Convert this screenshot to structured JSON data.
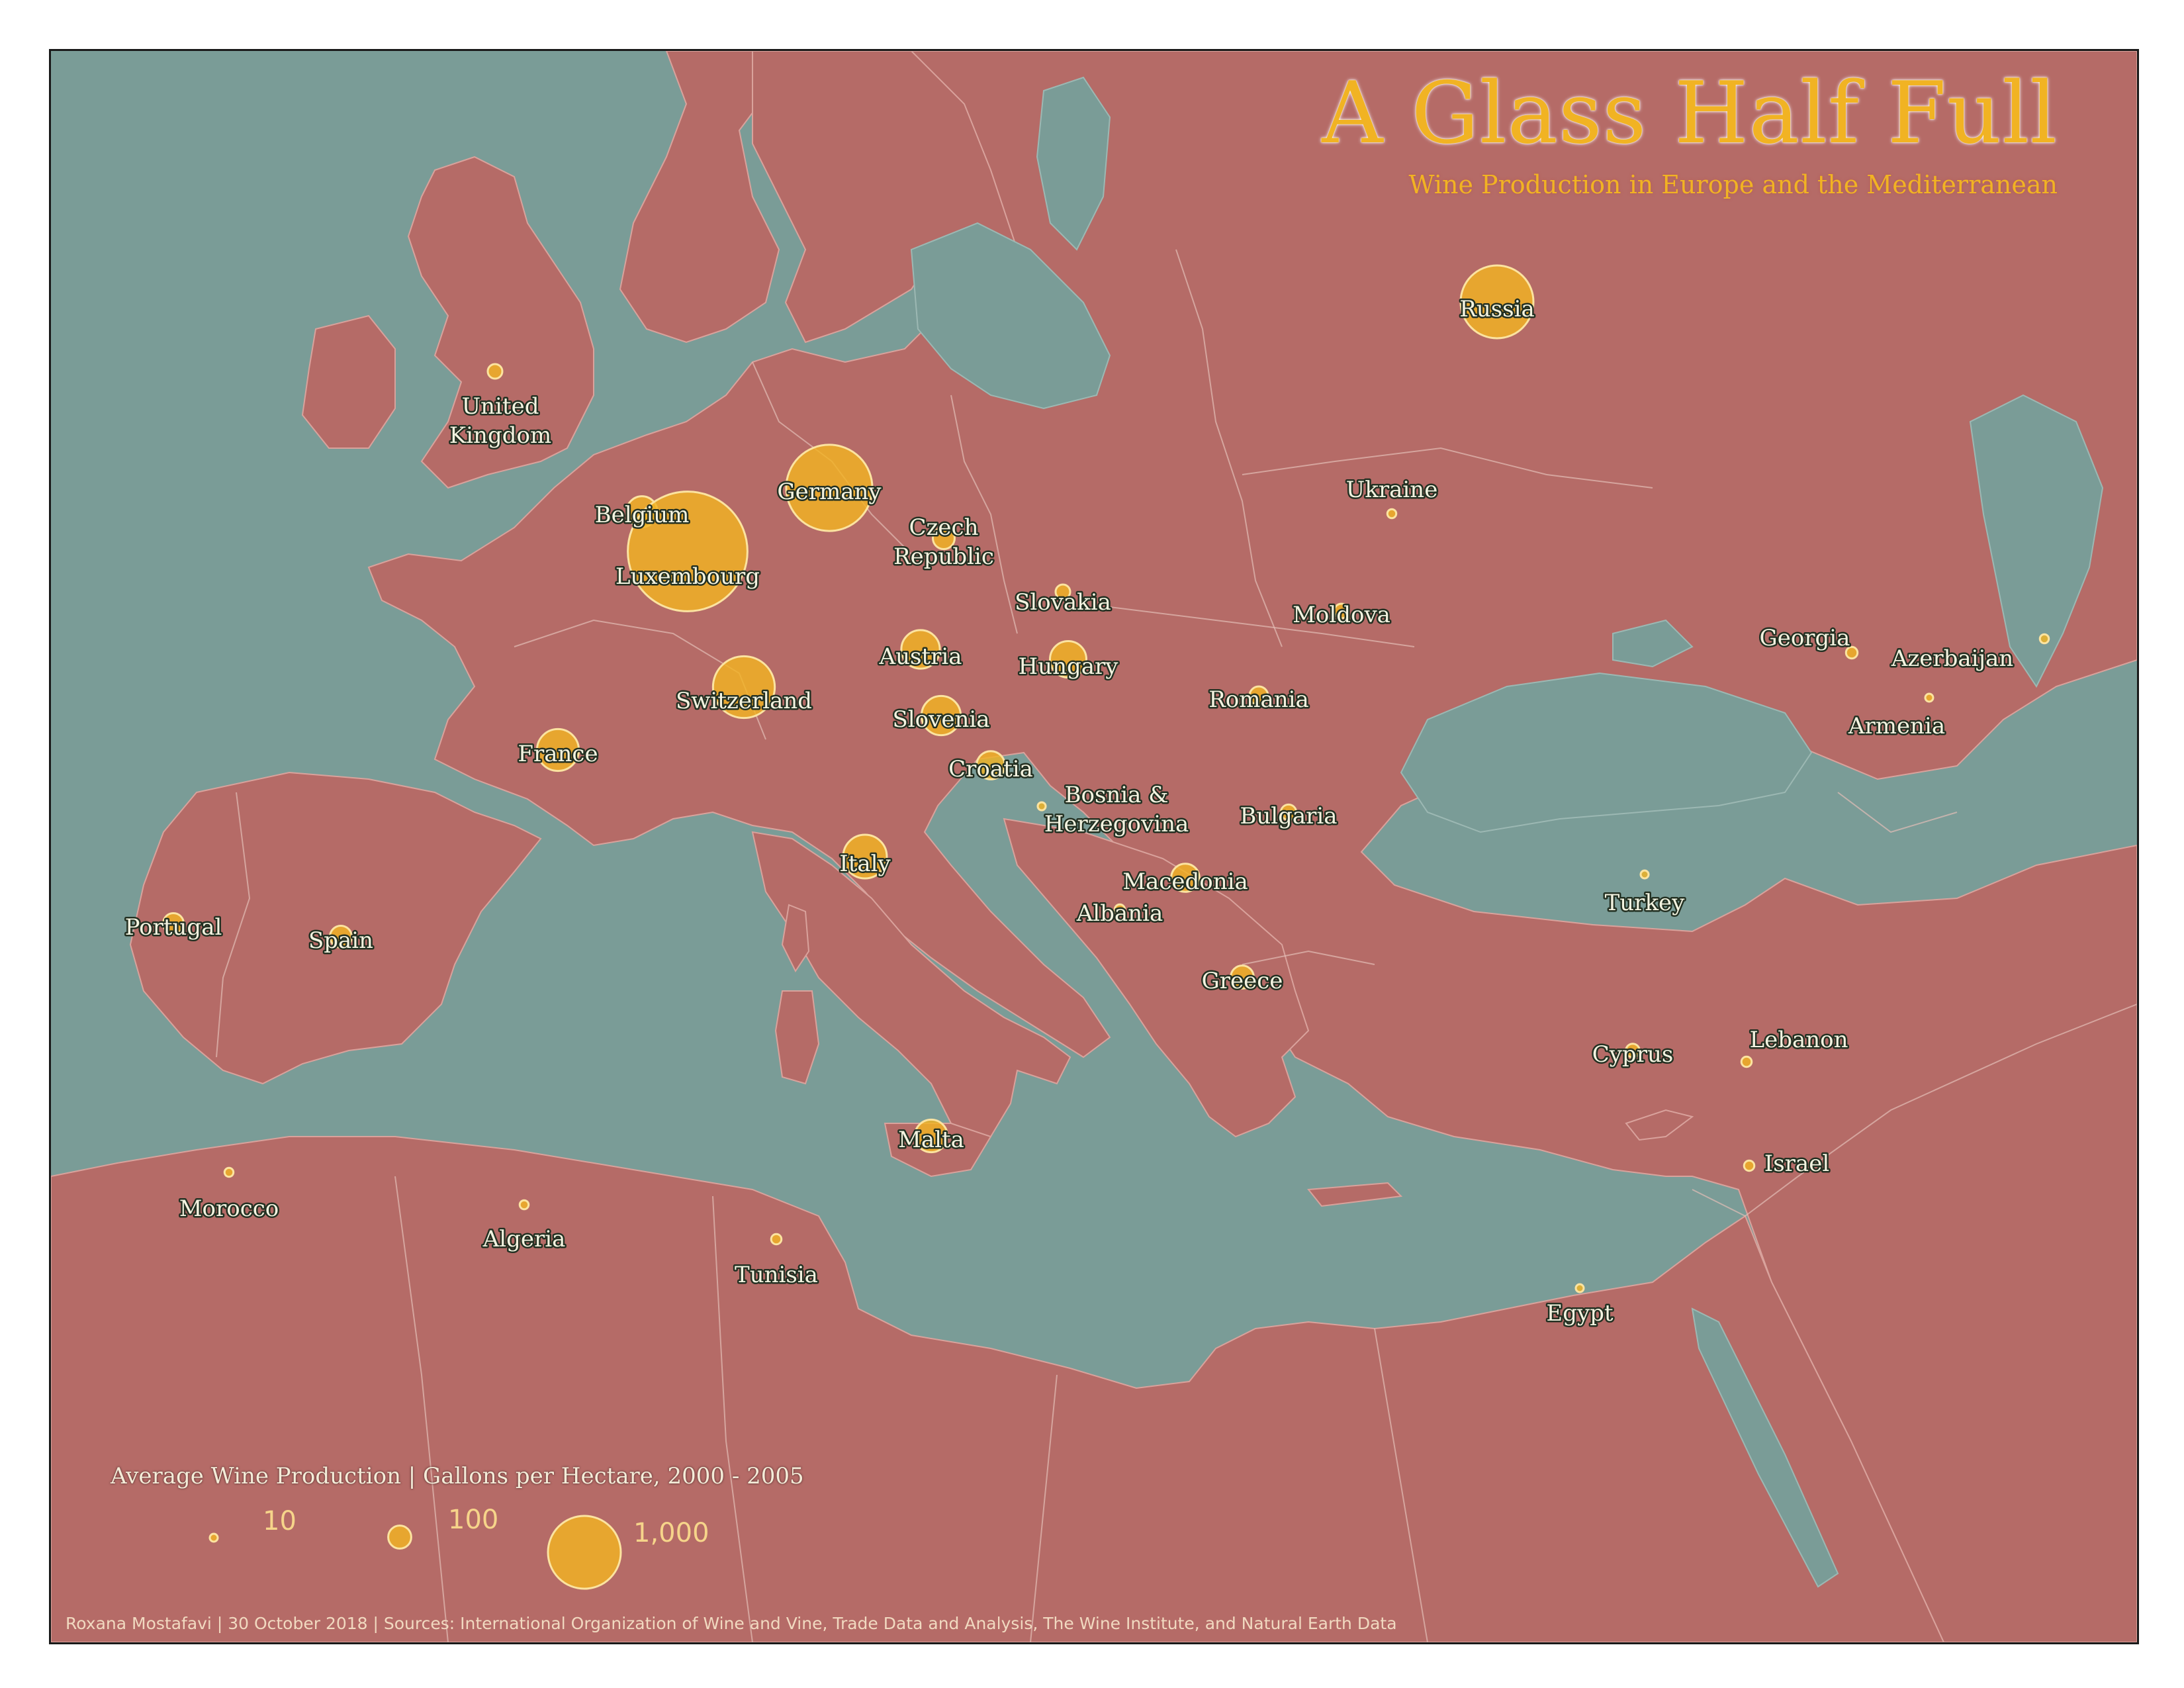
{
  "title": "A Glass Half Full",
  "subtitle": "Wine Production in Europe and the Mediterranean",
  "legend": {
    "title": "Average Wine Production | Gallons per Hectare, 2000 - 2005",
    "entries": [
      {
        "label": "10",
        "value": 10
      },
      {
        "label": "100",
        "value": 100
      },
      {
        "label": "1,000",
        "value": 1000
      }
    ]
  },
  "credits": "Roxana Mostafavi | 30 October 2018 | Sources: International Organization of Wine and Vine, Trade Data and Analysis, The Wine Institute, and Natural Earth Data",
  "colors": {
    "water": "#7a9c97",
    "land": "#b56b67",
    "bubble": "#f1b323",
    "title": "#f1b323"
  },
  "countries": [
    {
      "name": "Russia",
      "label_lines": [
        "Russia"
      ],
      "value": 1000
    },
    {
      "name": "United Kingdom",
      "label_lines": [
        "United",
        "Kingdom"
      ],
      "value": 40
    },
    {
      "name": "Ukraine",
      "label_lines": [
        "Ukraine"
      ],
      "value": 15
    },
    {
      "name": "Germany",
      "label_lines": [
        "Germany"
      ],
      "value": 1400
    },
    {
      "name": "Belgium",
      "label_lines": [
        "Belgium"
      ],
      "value": 180
    },
    {
      "name": "Luxembourg",
      "label_lines": [
        "Luxembourg"
      ],
      "value": 2700
    },
    {
      "name": "Czech Republic",
      "label_lines": [
        "Czech",
        "Republic"
      ],
      "value": 90
    },
    {
      "name": "Slovakia",
      "label_lines": [
        "Slovakia"
      ],
      "value": 40
    },
    {
      "name": "Moldova",
      "label_lines": [
        "Moldova"
      ],
      "value": 40
    },
    {
      "name": "Austria",
      "label_lines": [
        "Austria"
      ],
      "value": 280
    },
    {
      "name": "Hungary",
      "label_lines": [
        "Hungary"
      ],
      "value": 250
    },
    {
      "name": "Switzerland",
      "label_lines": [
        "Switzerland"
      ],
      "value": 720
    },
    {
      "name": "Slovenia",
      "label_lines": [
        "Slovenia"
      ],
      "value": 290
    },
    {
      "name": "Romania",
      "label_lines": [
        "Romania"
      ],
      "value": 65
    },
    {
      "name": "Georgia",
      "label_lines": [
        "Georgia"
      ],
      "value": 25
    },
    {
      "name": "Azerbaijan",
      "label_lines": [
        "Azerbaijan"
      ],
      "value": 15
    },
    {
      "name": "Armenia",
      "label_lines": [
        "Armenia"
      ],
      "value": 7
    },
    {
      "name": "France",
      "label_lines": [
        "France"
      ],
      "value": 330
    },
    {
      "name": "Croatia",
      "label_lines": [
        "Croatia"
      ],
      "value": 150
    },
    {
      "name": "Bosnia & Herzegovina",
      "label_lines": [
        "Bosnia &",
        "Herzegovina"
      ],
      "value": 12
    },
    {
      "name": "Bulgaria",
      "label_lines": [
        "Bulgaria"
      ],
      "value": 45
    },
    {
      "name": "Italy",
      "label_lines": [
        "Italy"
      ],
      "value": 360
    },
    {
      "name": "Macedonia",
      "label_lines": [
        "Macedonia"
      ],
      "value": 150
    },
    {
      "name": "Albania",
      "label_lines": [
        "Albania"
      ],
      "value": 20
    },
    {
      "name": "Turkey",
      "label_lines": [
        "Turkey"
      ],
      "value": 3
    },
    {
      "name": "Portugal",
      "label_lines": [
        "Portugal"
      ],
      "value": 80
    },
    {
      "name": "Spain",
      "label_lines": [
        "Spain"
      ],
      "value": 90
    },
    {
      "name": "Greece",
      "label_lines": [
        "Greece"
      ],
      "value": 100
    },
    {
      "name": "Cyprus",
      "label_lines": [
        "Cyprus"
      ],
      "value": 35
    },
    {
      "name": "Lebanon",
      "label_lines": [
        "Lebanon"
      ],
      "value": 20
    },
    {
      "name": "Israel",
      "label_lines": [
        "Israel"
      ],
      "value": 20
    },
    {
      "name": "Malta",
      "label_lines": [
        "Malta"
      ],
      "value": 200
    },
    {
      "name": "Morocco",
      "label_lines": [
        "Morocco"
      ],
      "value": 15
    },
    {
      "name": "Algeria",
      "label_lines": [
        "Algeria"
      ],
      "value": 15
    },
    {
      "name": "Tunisia",
      "label_lines": [
        "Tunisia"
      ],
      "value": 20
    },
    {
      "name": "Egypt",
      "label_lines": [
        "Egypt"
      ],
      "value": 3
    }
  ]
}
